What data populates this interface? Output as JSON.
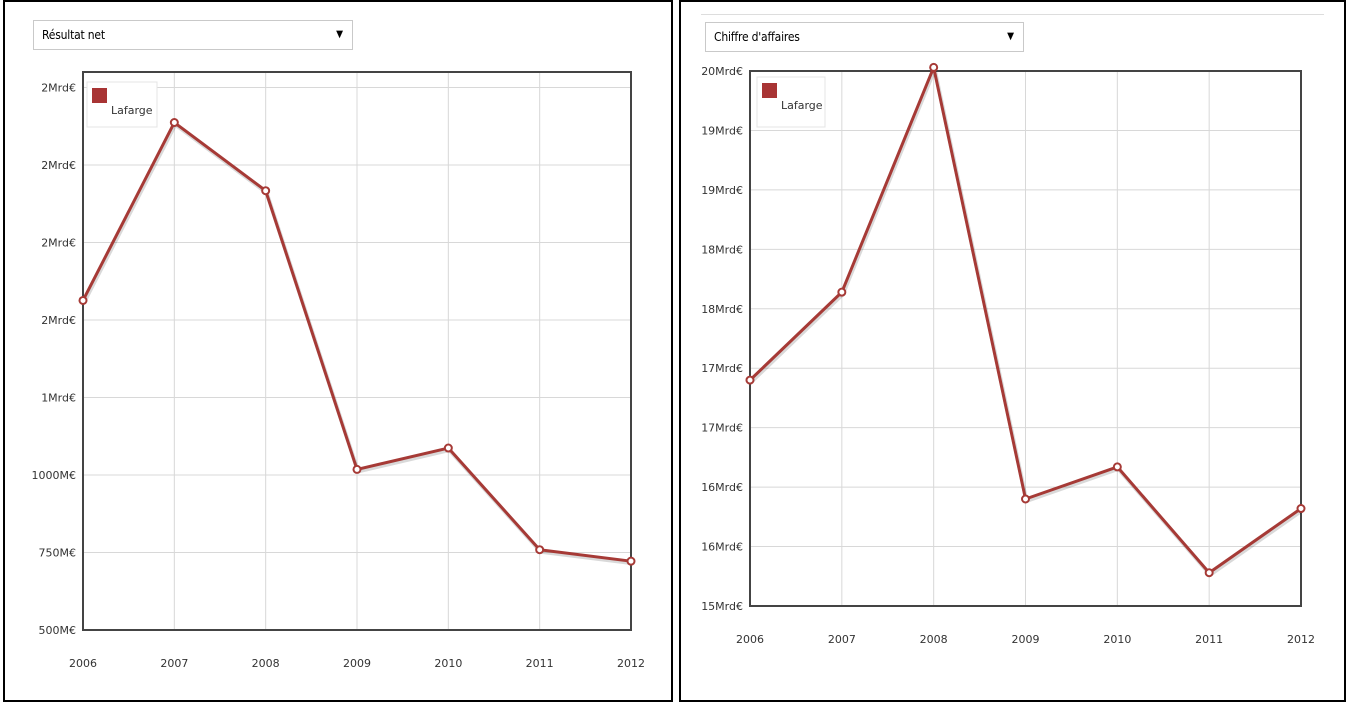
{
  "colors": {
    "series": "#a63a36",
    "legend_swatch": "#a83434",
    "grid": "#d8d8d8",
    "frame": "#444444"
  },
  "left": {
    "dropdown": {
      "selected": "Résultat net",
      "caret": "▼"
    },
    "legend": "Lafarge"
  },
  "right": {
    "dropdown": {
      "selected": "Chiffre d'affaires",
      "caret": "▼"
    },
    "legend": "Lafarge"
  },
  "chart_data": [
    {
      "type": "line",
      "title": "Résultat net",
      "categories": [
        "2006",
        "2007",
        "2008",
        "2009",
        "2010",
        "2011",
        "2012"
      ],
      "series": [
        {
          "name": "Lafarge",
          "values": [
            1563,
            2137,
            1917,
            1018,
            1087,
            759,
            722
          ]
        }
      ],
      "ylim": [
        500,
        2300
      ],
      "yticks": [
        {
          "value": 500,
          "label": "500M€"
        },
        {
          "value": 750,
          "label": "750M€"
        },
        {
          "value": 1000,
          "label": "1000M€"
        },
        {
          "value": 1250,
          "label": "1Mrd€"
        },
        {
          "value": 1500,
          "label": "2Mrd€"
        },
        {
          "value": 1750,
          "label": "2Mrd€"
        },
        {
          "value": 2000,
          "label": "2Mrd€"
        },
        {
          "value": 2250,
          "label": "2Mrd€"
        }
      ],
      "grid": true,
      "legend_position": "top-left"
    },
    {
      "type": "line",
      "title": "Chiffre d'affaires",
      "categories": [
        "2006",
        "2007",
        "2008",
        "2009",
        "2010",
        "2011",
        "2012"
      ],
      "series": [
        {
          "name": "Lafarge",
          "values": [
            16900,
            17640,
            19530,
            15900,
            16170,
            15280,
            15820
          ]
        }
      ],
      "ylim": [
        15000,
        19500
      ],
      "yticks": [
        {
          "value": 15000,
          "label": "15Mrd€"
        },
        {
          "value": 15500,
          "label": "16Mrd€"
        },
        {
          "value": 16000,
          "label": "16Mrd€"
        },
        {
          "value": 16500,
          "label": "17Mrd€"
        },
        {
          "value": 17000,
          "label": "17Mrd€"
        },
        {
          "value": 17500,
          "label": "18Mrd€"
        },
        {
          "value": 18000,
          "label": "18Mrd€"
        },
        {
          "value": 18500,
          "label": "19Mrd€"
        },
        {
          "value": 19000,
          "label": "19Mrd€"
        },
        {
          "value": 19500,
          "label": "20Mrd€"
        }
      ],
      "grid": true,
      "legend_position": "top-left"
    }
  ]
}
